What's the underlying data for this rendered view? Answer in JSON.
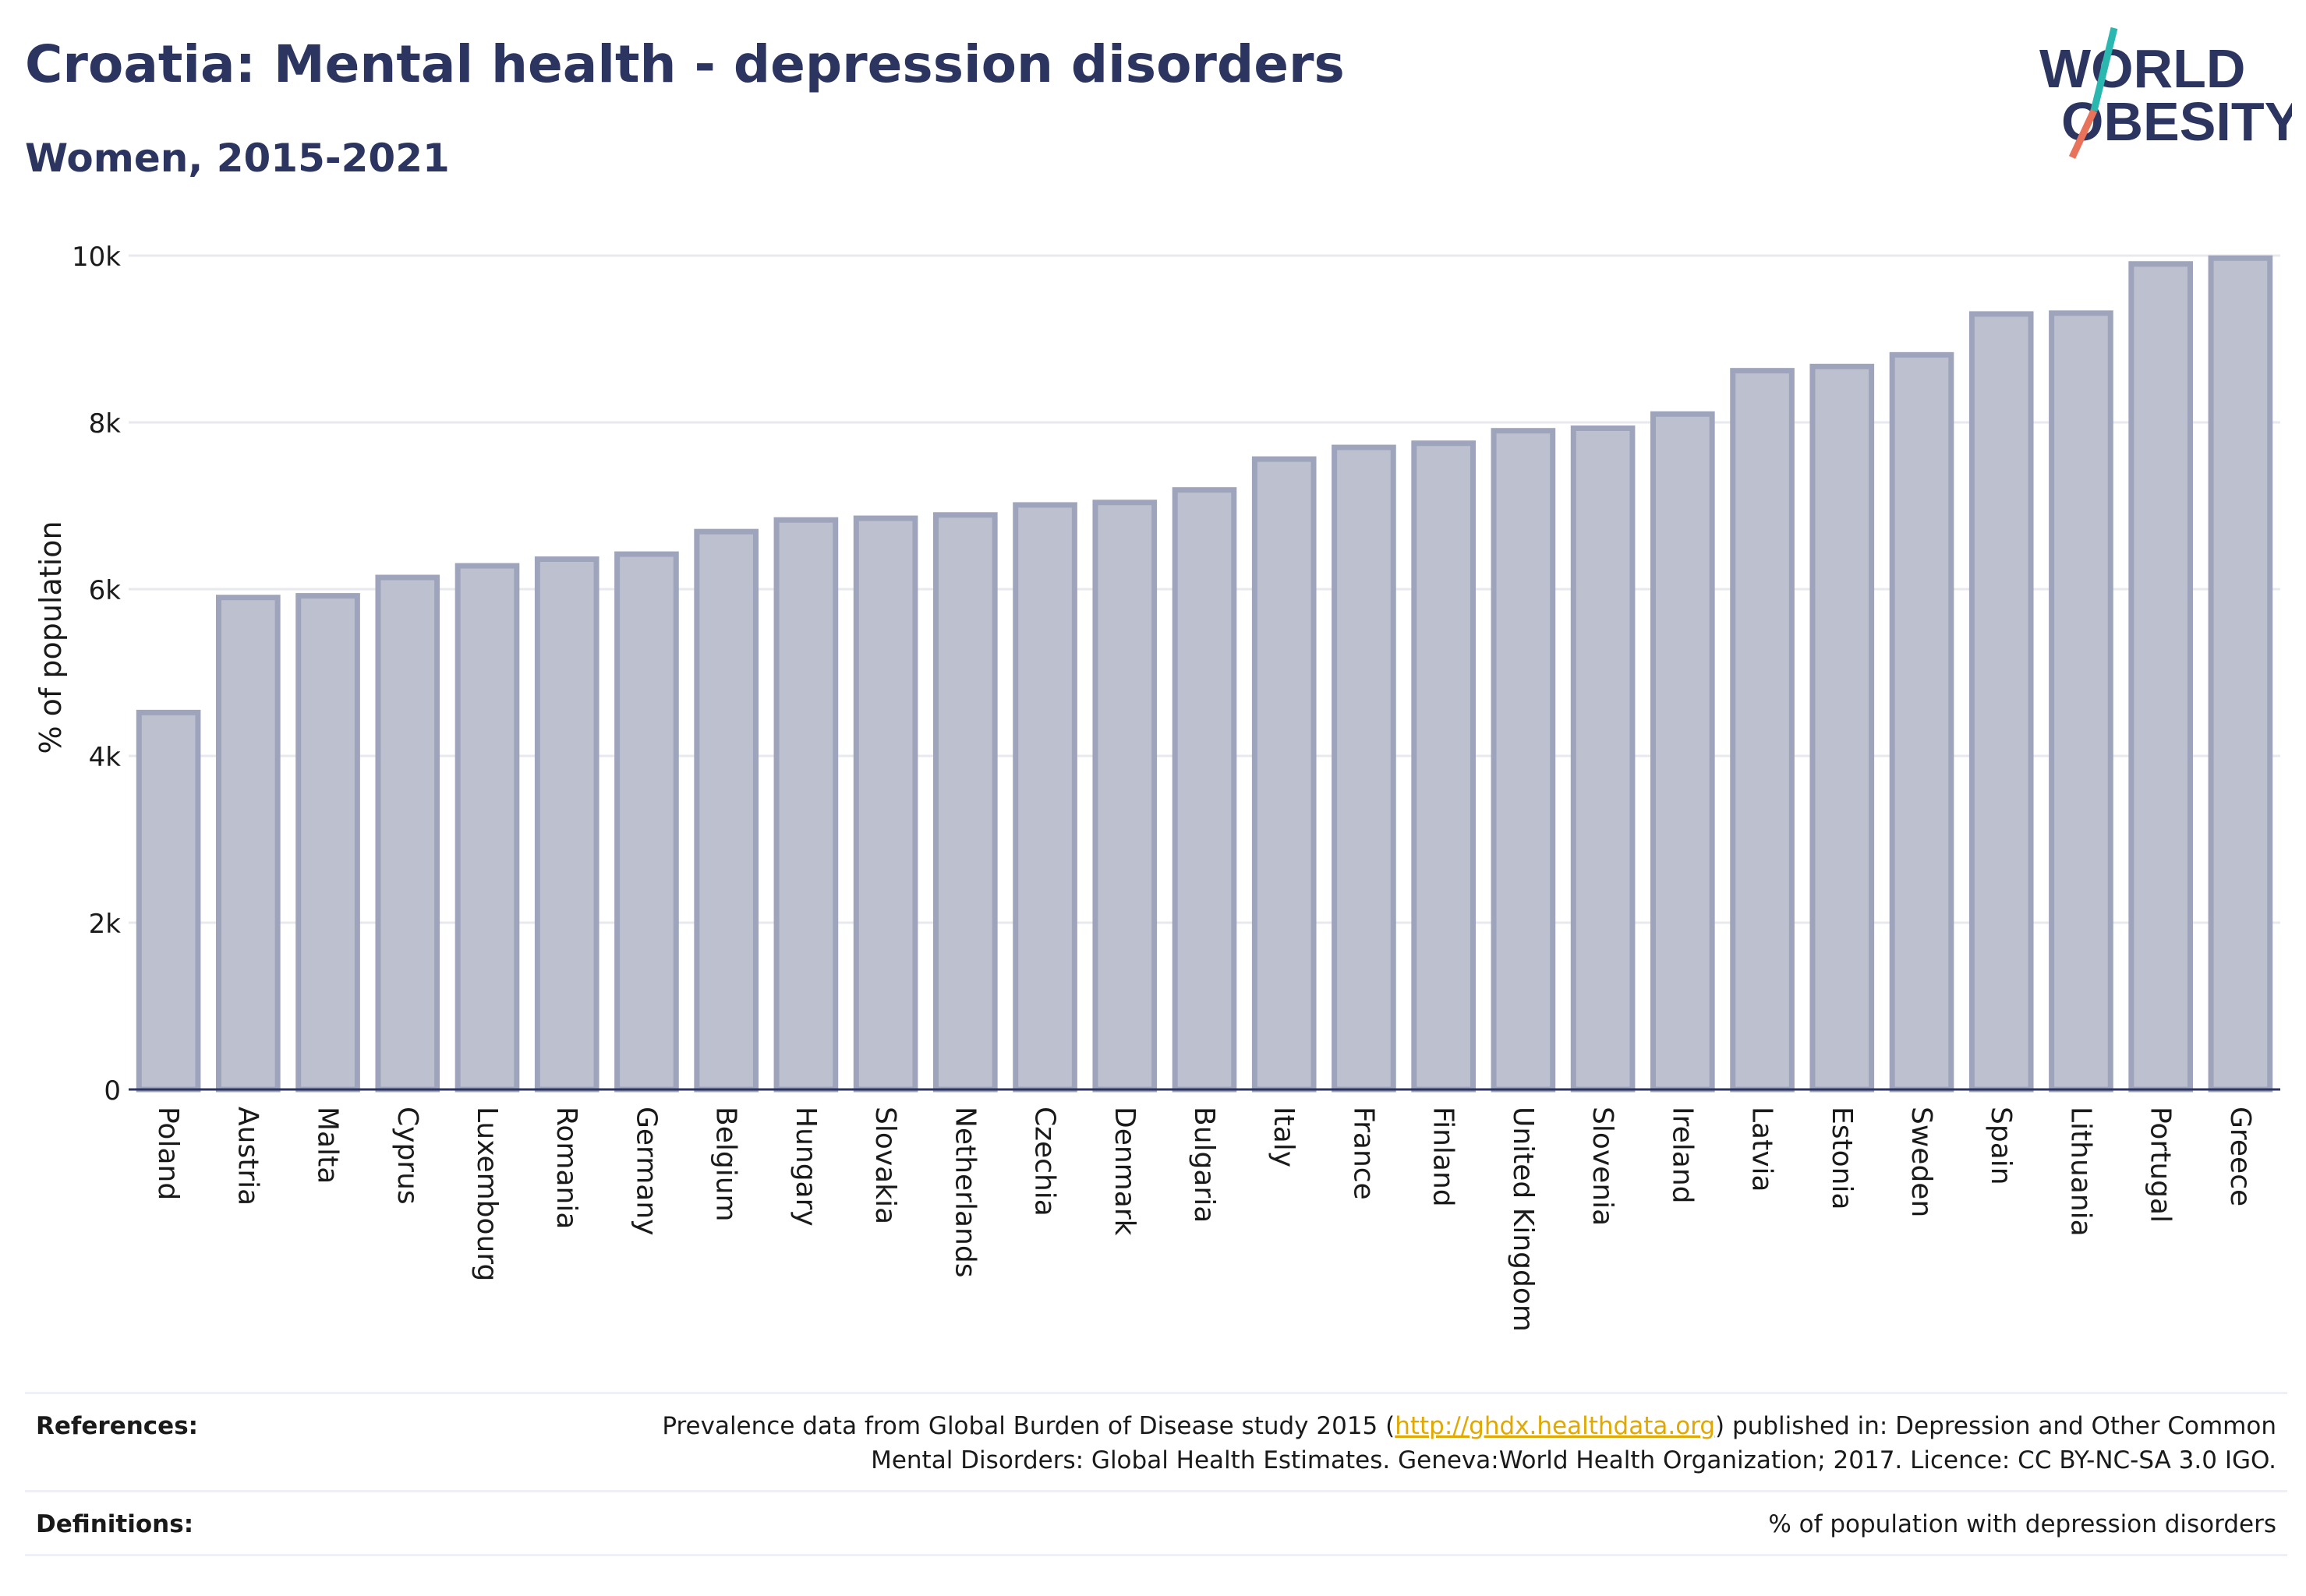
{
  "header": {
    "title": "Croatia: Mental health - depression disorders",
    "subtitle": "Women, 2015-2021"
  },
  "logo": {
    "line1": "WORLD",
    "line2": "OBESITY",
    "accent_teal": "#2ab7b0",
    "accent_coral": "#e8735a"
  },
  "colors": {
    "text": "#2b3560",
    "bar_fill": "#bcc0cf",
    "bar_stroke": "#9ea4bc",
    "grid": "#e8e9ee",
    "axis": "#2b3560"
  },
  "chart_data": {
    "type": "bar",
    "ylabel": "% of population",
    "xlabel": "",
    "ylim": [
      0,
      10000
    ],
    "yticks": [
      0,
      2000,
      4000,
      6000,
      8000,
      10000
    ],
    "ytick_labels": [
      "0",
      "2k",
      "4k",
      "6k",
      "8k",
      "10k"
    ],
    "grid": true,
    "categories": [
      "Poland",
      "Austria",
      "Malta",
      "Cyprus",
      "Luxembourg",
      "Romania",
      "Germany",
      "Belgium",
      "Hungary",
      "Slovakia",
      "Netherlands",
      "Czechia",
      "Denmark",
      "Bulgaria",
      "Italy",
      "France",
      "Finland",
      "United Kingdom",
      "Slovenia",
      "Ireland",
      "Latvia",
      "Estonia",
      "Sweden",
      "Spain",
      "Lithuania",
      "Portugal",
      "Greece"
    ],
    "values": [
      4520,
      5900,
      5920,
      6140,
      6280,
      6360,
      6420,
      6690,
      6830,
      6850,
      6890,
      7010,
      7040,
      7190,
      7560,
      7700,
      7750,
      7900,
      7930,
      8100,
      8620,
      8670,
      8810,
      9300,
      9310,
      9900,
      9970
    ]
  },
  "footer": {
    "references_label": "References:",
    "references_pre": "Prevalence data from Global Burden of Disease study 2015 (",
    "references_link": "http://ghdx.healthdata.org",
    "references_post": ") published in: Depression and Other Common",
    "references_line2": "Mental Disorders: Global Health Estimates. Geneva:World Health Organization; 2017. Licence: CC BY-NC-SA 3.0 IGO.",
    "definitions_label": "Definitions:",
    "definitions_text": "% of population with depression disorders"
  }
}
